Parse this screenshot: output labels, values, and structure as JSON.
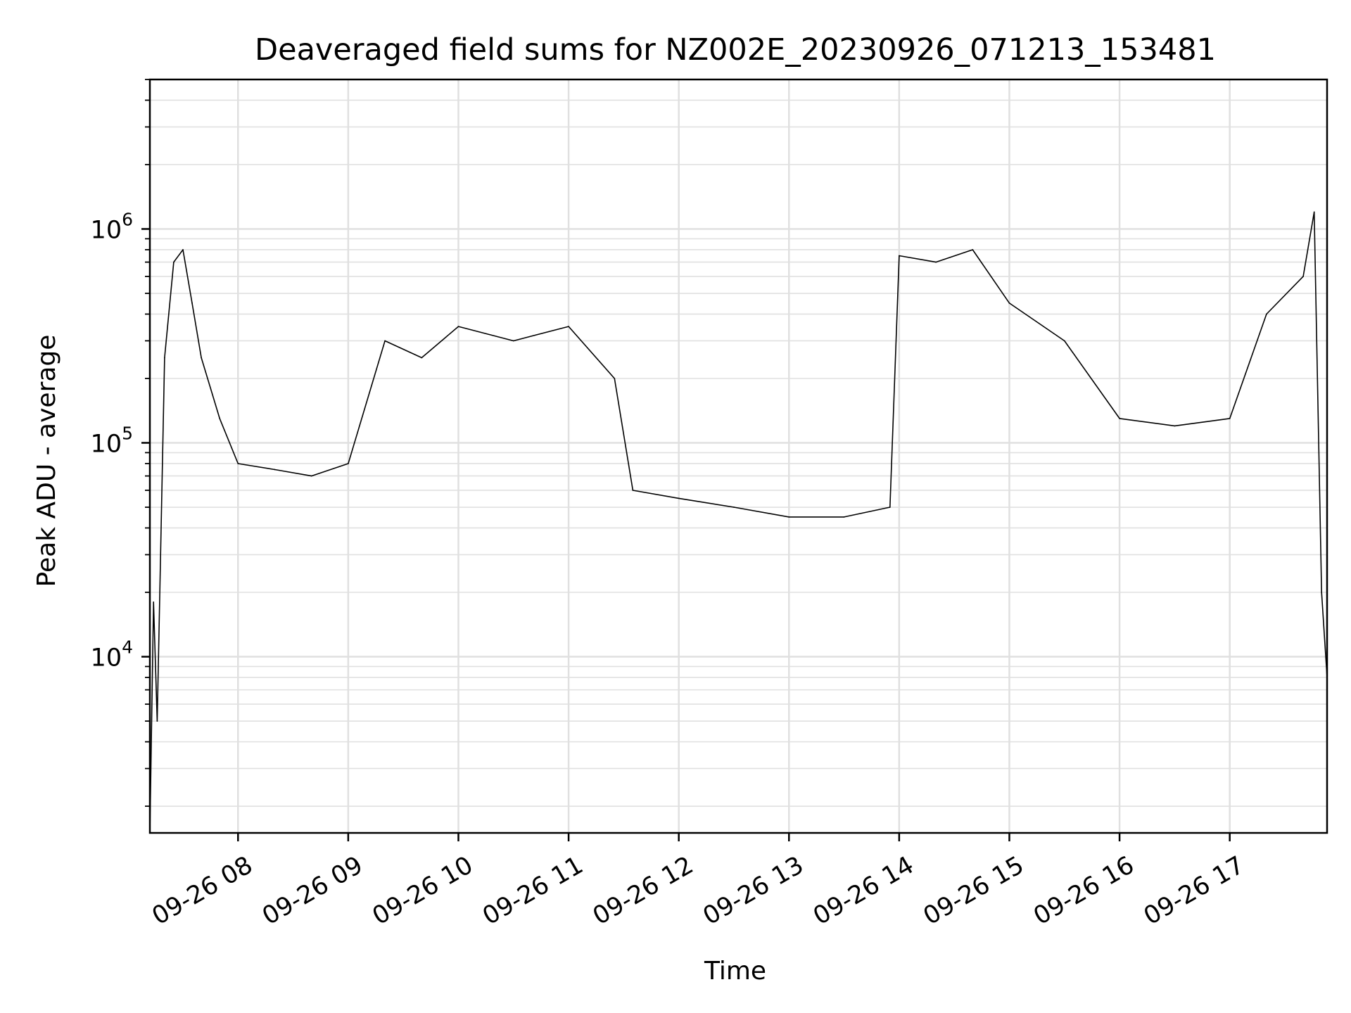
{
  "chart_data": {
    "type": "line",
    "title": "Deaveraged field sums for NZ002E_20230926_071213_153481",
    "xlabel": "Time",
    "ylabel": "Peak ADU - average",
    "yscale": "log",
    "ylim": [
      1500,
      5000000
    ],
    "xlim": [
      "2023-09-26 07:12",
      "2023-09-26 17:53"
    ],
    "x_tick_labels": [
      "09-26 08",
      "09-26 09",
      "09-26 10",
      "09-26 11",
      "09-26 12",
      "09-26 13",
      "09-26 14",
      "09-26 15",
      "09-26 16",
      "09-26 17"
    ],
    "y_tick_labels": [
      {
        "base": "10",
        "exp": "4"
      },
      {
        "base": "10",
        "exp": "5"
      },
      {
        "base": "10",
        "exp": "6"
      }
    ],
    "grid": true,
    "line_color": "#000000",
    "series": [
      {
        "x": [
          "2023-09-26 07:12",
          "2023-09-26 07:14",
          "2023-09-26 07:16",
          "2023-09-26 07:20",
          "2023-09-26 07:25",
          "2023-09-26 07:30",
          "2023-09-26 07:35",
          "2023-09-26 07:40",
          "2023-09-26 07:50",
          "2023-09-26 08:00",
          "2023-09-26 08:20",
          "2023-09-26 08:40",
          "2023-09-26 09:00",
          "2023-09-26 09:20",
          "2023-09-26 09:40",
          "2023-09-26 10:00",
          "2023-09-26 10:30",
          "2023-09-26 11:00",
          "2023-09-26 11:25",
          "2023-09-26 11:35",
          "2023-09-26 12:00",
          "2023-09-26 12:30",
          "2023-09-26 13:00",
          "2023-09-26 13:30",
          "2023-09-26 13:55",
          "2023-09-26 14:00",
          "2023-09-26 14:20",
          "2023-09-26 14:40",
          "2023-09-26 15:00",
          "2023-09-26 15:30",
          "2023-09-26 16:00",
          "2023-09-26 16:30",
          "2023-09-26 17:00",
          "2023-09-26 17:20",
          "2023-09-26 17:40",
          "2023-09-26 17:46",
          "2023-09-26 17:50",
          "2023-09-26 17:53"
        ],
        "values": [
          1500,
          18000,
          5000,
          250000,
          700000,
          800000,
          450000,
          250000,
          130000,
          80000,
          75000,
          70000,
          80000,
          300000,
          250000,
          350000,
          300000,
          350000,
          200000,
          60000,
          55000,
          50000,
          45000,
          45000,
          50000,
          750000,
          700000,
          800000,
          450000,
          300000,
          130000,
          120000,
          130000,
          400000,
          600000,
          1200000,
          20000,
          8000
        ]
      }
    ]
  }
}
